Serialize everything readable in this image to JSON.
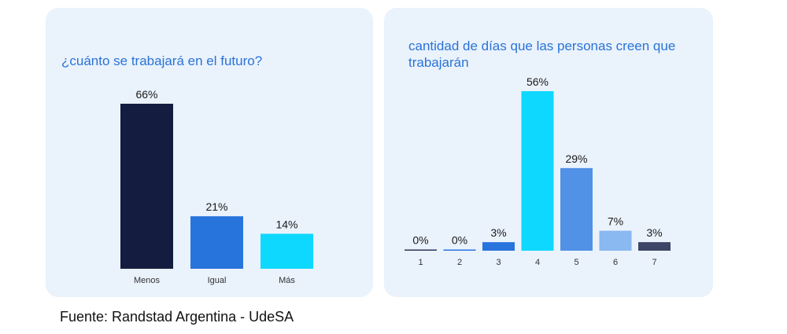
{
  "chart_data": [
    {
      "type": "bar",
      "title": "¿cuánto se trabajará en el futuro?",
      "categories": [
        "Menos",
        "Igual",
        "Más"
      ],
      "values": [
        66,
        21,
        14
      ],
      "value_labels": [
        "66%",
        "21%",
        "14%"
      ],
      "colors": [
        "#141d3f",
        "#2874dd",
        "#0fd8ff"
      ],
      "xlabel": "",
      "ylabel": "",
      "ylim": [
        0,
        66
      ],
      "unit": "%",
      "grid": false
    },
    {
      "type": "bar",
      "title": "cantidad de días que las personas creen que trabajarán",
      "categories": [
        "1",
        "2",
        "3",
        "4",
        "5",
        "6",
        "7"
      ],
      "values": [
        0,
        0,
        3,
        56,
        29,
        7,
        3
      ],
      "value_labels": [
        "0%",
        "0%",
        "3%",
        "56%",
        "29%",
        "7%",
        "3%"
      ],
      "colors": [
        "#2b3559",
        "#2874dd",
        "#2874dd",
        "#0fd8ff",
        "#5191e6",
        "#8ab8f0",
        "#3d4666"
      ],
      "xlabel": "",
      "ylabel": "",
      "ylim": [
        0,
        56
      ],
      "unit": "%",
      "grid": false
    }
  ],
  "source_text": "Fuente: Randstad Argentina - UdeSA"
}
